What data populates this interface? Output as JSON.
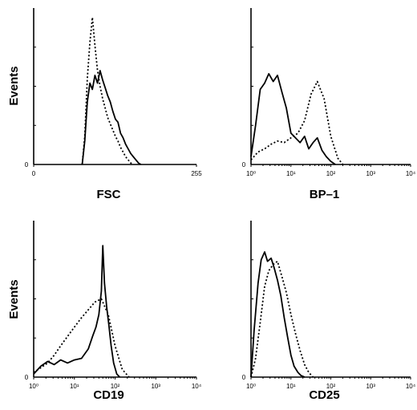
{
  "chart_data": [
    {
      "type": "line",
      "panel": "top-left",
      "xlabel": "FSC",
      "ylabel": "Events",
      "xscale": "linear",
      "xlim": [
        0,
        255
      ],
      "ymin_label": "0",
      "xtick_labels": [
        "0",
        "255"
      ],
      "xticks": [
        0,
        255
      ],
      "series": [
        {
          "style": "solid",
          "x": [
            76,
            80,
            84,
            88,
            92,
            96,
            100,
            104,
            108,
            112,
            116,
            120,
            124,
            128,
            132,
            136,
            140,
            144,
            148,
            152,
            156,
            160,
            164,
            168
          ],
          "y": [
            0,
            15,
            40,
            52,
            48,
            57,
            52,
            60,
            54,
            49,
            44,
            40,
            34,
            29,
            27,
            20,
            17,
            13,
            10,
            7,
            5,
            3,
            1,
            0
          ]
        },
        {
          "style": "dotted",
          "x": [
            76,
            80,
            84,
            88,
            92,
            96,
            100,
            104,
            108,
            112,
            116,
            120,
            124,
            128,
            132,
            136,
            140,
            144,
            148,
            152,
            156
          ],
          "y": [
            0,
            18,
            55,
            78,
            94,
            76,
            60,
            50,
            42,
            36,
            30,
            26,
            22,
            18,
            15,
            11,
            8,
            5,
            3,
            1,
            0
          ]
        }
      ]
    },
    {
      "type": "line",
      "panel": "top-right",
      "xlabel": "BP–1",
      "ylabel": "",
      "xscale": "log",
      "xlim": [
        1,
        10000
      ],
      "ymin_label": "0",
      "xtick_labels": [
        "10⁰",
        "10¹",
        "10²",
        "10³",
        "10⁴"
      ],
      "xticks": [
        1,
        10,
        100,
        1000,
        10000
      ],
      "series": [
        {
          "style": "solid",
          "x": [
            1,
            1.3,
            1.7,
            2.2,
            2.8,
            3.6,
            4.6,
            6,
            7.7,
            10,
            13,
            17,
            22,
            28,
            36,
            46,
            60,
            77,
            100,
            130
          ],
          "y": [
            5,
            25,
            48,
            52,
            58,
            53,
            57,
            46,
            36,
            20,
            17,
            14,
            18,
            10,
            14,
            17,
            9,
            5,
            2,
            0
          ]
        },
        {
          "style": "dotted",
          "x": [
            1,
            1.5,
            2.2,
            3.2,
            4.6,
            6.8,
            10,
            15,
            22,
            32,
            46,
            68,
            100,
            150,
            200
          ],
          "y": [
            3,
            8,
            10,
            13,
            15,
            14,
            17,
            20,
            28,
            45,
            53,
            42,
            18,
            4,
            0
          ]
        }
      ]
    },
    {
      "type": "line",
      "panel": "bottom-left",
      "xlabel": "CD19",
      "ylabel": "Events",
      "xscale": "log",
      "xlim": [
        1,
        10000
      ],
      "ymin_label": "0",
      "xtick_labels": [
        "10⁰",
        "10¹",
        "10²",
        "10³",
        "10⁴"
      ],
      "xticks": [
        1,
        10,
        100,
        1000,
        10000
      ],
      "series": [
        {
          "style": "solid",
          "x": [
            1,
            1.5,
            2.2,
            3.2,
            4.6,
            6.8,
            10,
            15,
            22,
            28,
            34,
            40,
            46,
            50,
            55,
            62,
            70,
            80,
            92,
            110,
            130
          ],
          "y": [
            2,
            7,
            10,
            8,
            11,
            9,
            11,
            12,
            18,
            26,
            32,
            40,
            55,
            84,
            60,
            45,
            34,
            20,
            9,
            2,
            0
          ]
        },
        {
          "style": "dotted",
          "x": [
            1,
            1.5,
            2.2,
            3.2,
            4.6,
            6.8,
            10,
            15,
            22,
            32,
            46,
            68,
            100,
            150,
            220
          ],
          "y": [
            3,
            6,
            9,
            14,
            20,
            26,
            32,
            38,
            43,
            48,
            50,
            40,
            20,
            5,
            0
          ]
        }
      ]
    },
    {
      "type": "line",
      "panel": "bottom-right",
      "xlabel": "CD25",
      "ylabel": "",
      "xscale": "log",
      "xlim": [
        1,
        10000
      ],
      "ymin_label": "0",
      "xtick_labels": [
        "10⁰",
        "10¹",
        "10²",
        "10³",
        "10⁴"
      ],
      "xticks": [
        1,
        10,
        100,
        1000,
        10000
      ],
      "series": [
        {
          "style": "solid",
          "x": [
            1,
            1.2,
            1.5,
            1.8,
            2.2,
            2.6,
            3.2,
            3.8,
            4.6,
            5.6,
            6.8,
            8.2,
            10,
            12,
            15,
            18,
            22
          ],
          "y": [
            0,
            30,
            60,
            75,
            80,
            74,
            76,
            70,
            62,
            52,
            38,
            26,
            14,
            7,
            3,
            1,
            0
          ]
        },
        {
          "style": "dotted",
          "x": [
            1,
            1.3,
            1.7,
            2.2,
            2.8,
            3.6,
            4.6,
            6,
            7.7,
            10,
            13,
            17,
            22,
            28,
            36
          ],
          "y": [
            0,
            12,
            35,
            58,
            68,
            72,
            74,
            64,
            54,
            40,
            28,
            17,
            8,
            3,
            0
          ]
        }
      ]
    }
  ]
}
